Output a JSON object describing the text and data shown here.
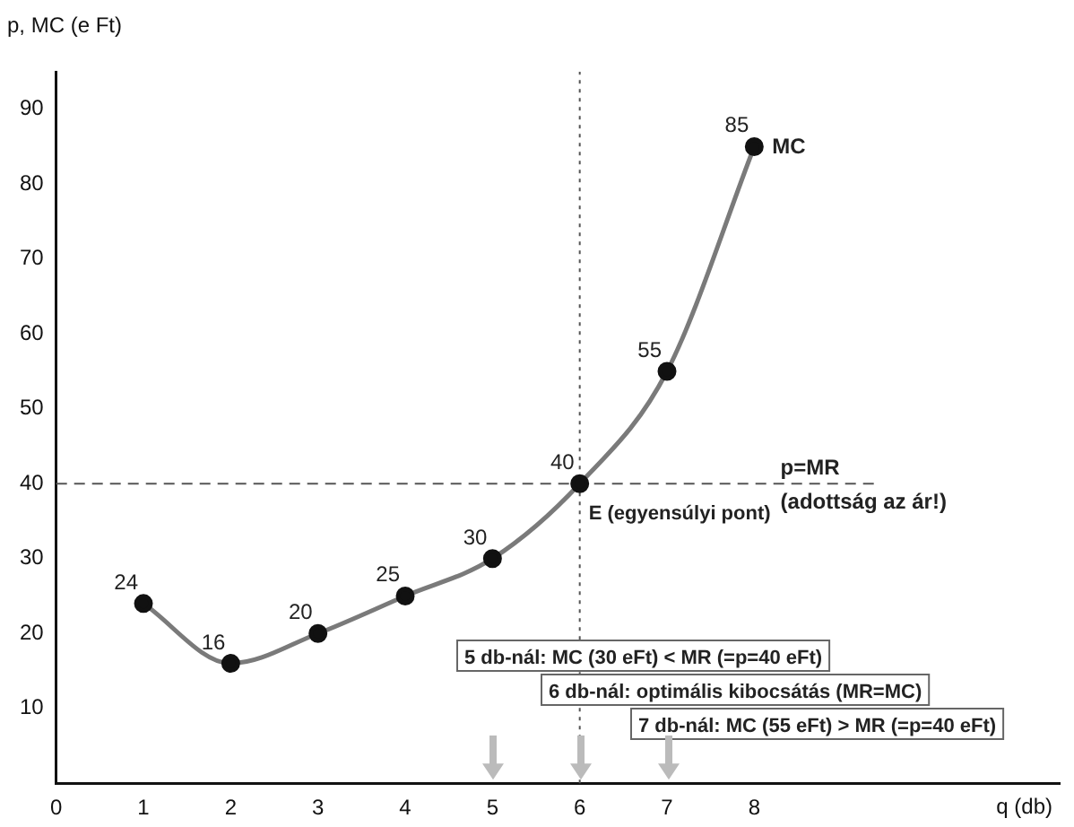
{
  "chart_data": {
    "type": "line",
    "xlabel": "q (db)",
    "ylabel": "p, MC (e Ft)",
    "x": [
      1,
      2,
      3,
      4,
      5,
      6,
      7,
      8
    ],
    "series": [
      {
        "name": "MC",
        "color": "#7a7a7a",
        "values": [
          24,
          16,
          20,
          25,
          30,
          40,
          55,
          85
        ]
      }
    ],
    "xlim": [
      0,
      11.5
    ],
    "ylim": [
      0,
      95
    ],
    "xticks": [
      0,
      1,
      2,
      3,
      4,
      5,
      6,
      7,
      8
    ],
    "yticks": [
      10,
      20,
      30,
      40,
      50,
      60,
      70,
      80,
      90
    ],
    "ref_lines": [
      {
        "axis": "y",
        "value": 40,
        "label": "p=MR (adottság az ár!)",
        "color": "#555555",
        "line_style": "dashed"
      },
      {
        "axis": "x",
        "value": 6,
        "color": "#555555",
        "line_style": "dotted"
      }
    ],
    "annotations": [
      {
        "text": "E (egyensúlyi pont)",
        "x": 6,
        "y": 40
      },
      "5 db-nál: MC (30 eFt) < MR (=p=40 eFt)",
      "6 db-nál: optimális kibocsátás (MR=MC)",
      "7 db-nál: MC (55 eFt) > MR (=p=40 eFt)"
    ],
    "data_labels": true,
    "marker": "circle",
    "grid": false,
    "legend": false,
    "line_style": "solid"
  }
}
